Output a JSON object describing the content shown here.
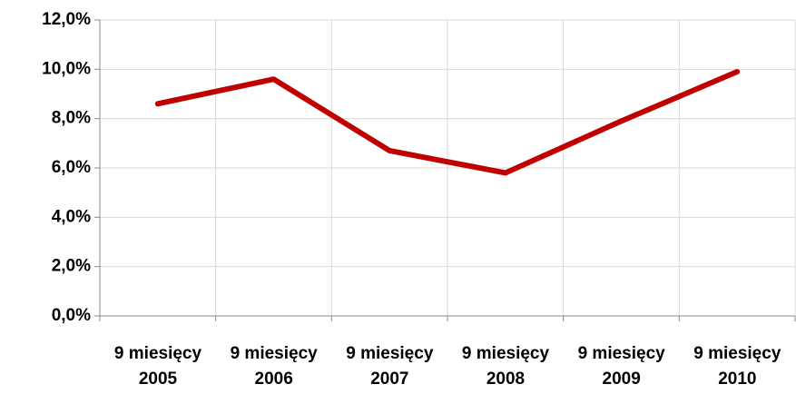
{
  "chart_data": {
    "type": "line",
    "categories": [
      "9 miesięcy 2005",
      "9 miesięcy 2006",
      "9 miesięcy 2007",
      "9 miesięcy 2008",
      "9 miesięcy 2009",
      "9 miesięcy 2010"
    ],
    "series": [
      {
        "name": null,
        "color": "#c00000",
        "values": [
          8.6,
          9.6,
          6.7,
          5.8,
          7.9,
          9.9
        ]
      }
    ],
    "ylim": [
      0,
      12
    ],
    "yticks": [
      {
        "value": 0,
        "label": "0,0%"
      },
      {
        "value": 2,
        "label": "2,0%"
      },
      {
        "value": 4,
        "label": "4,0%"
      },
      {
        "value": 6,
        "label": "6,0%"
      },
      {
        "value": 8,
        "label": "8,0%"
      },
      {
        "value": 10,
        "label": "10,0%"
      },
      {
        "value": 12,
        "label": "12,0%"
      }
    ],
    "grid": true
  }
}
